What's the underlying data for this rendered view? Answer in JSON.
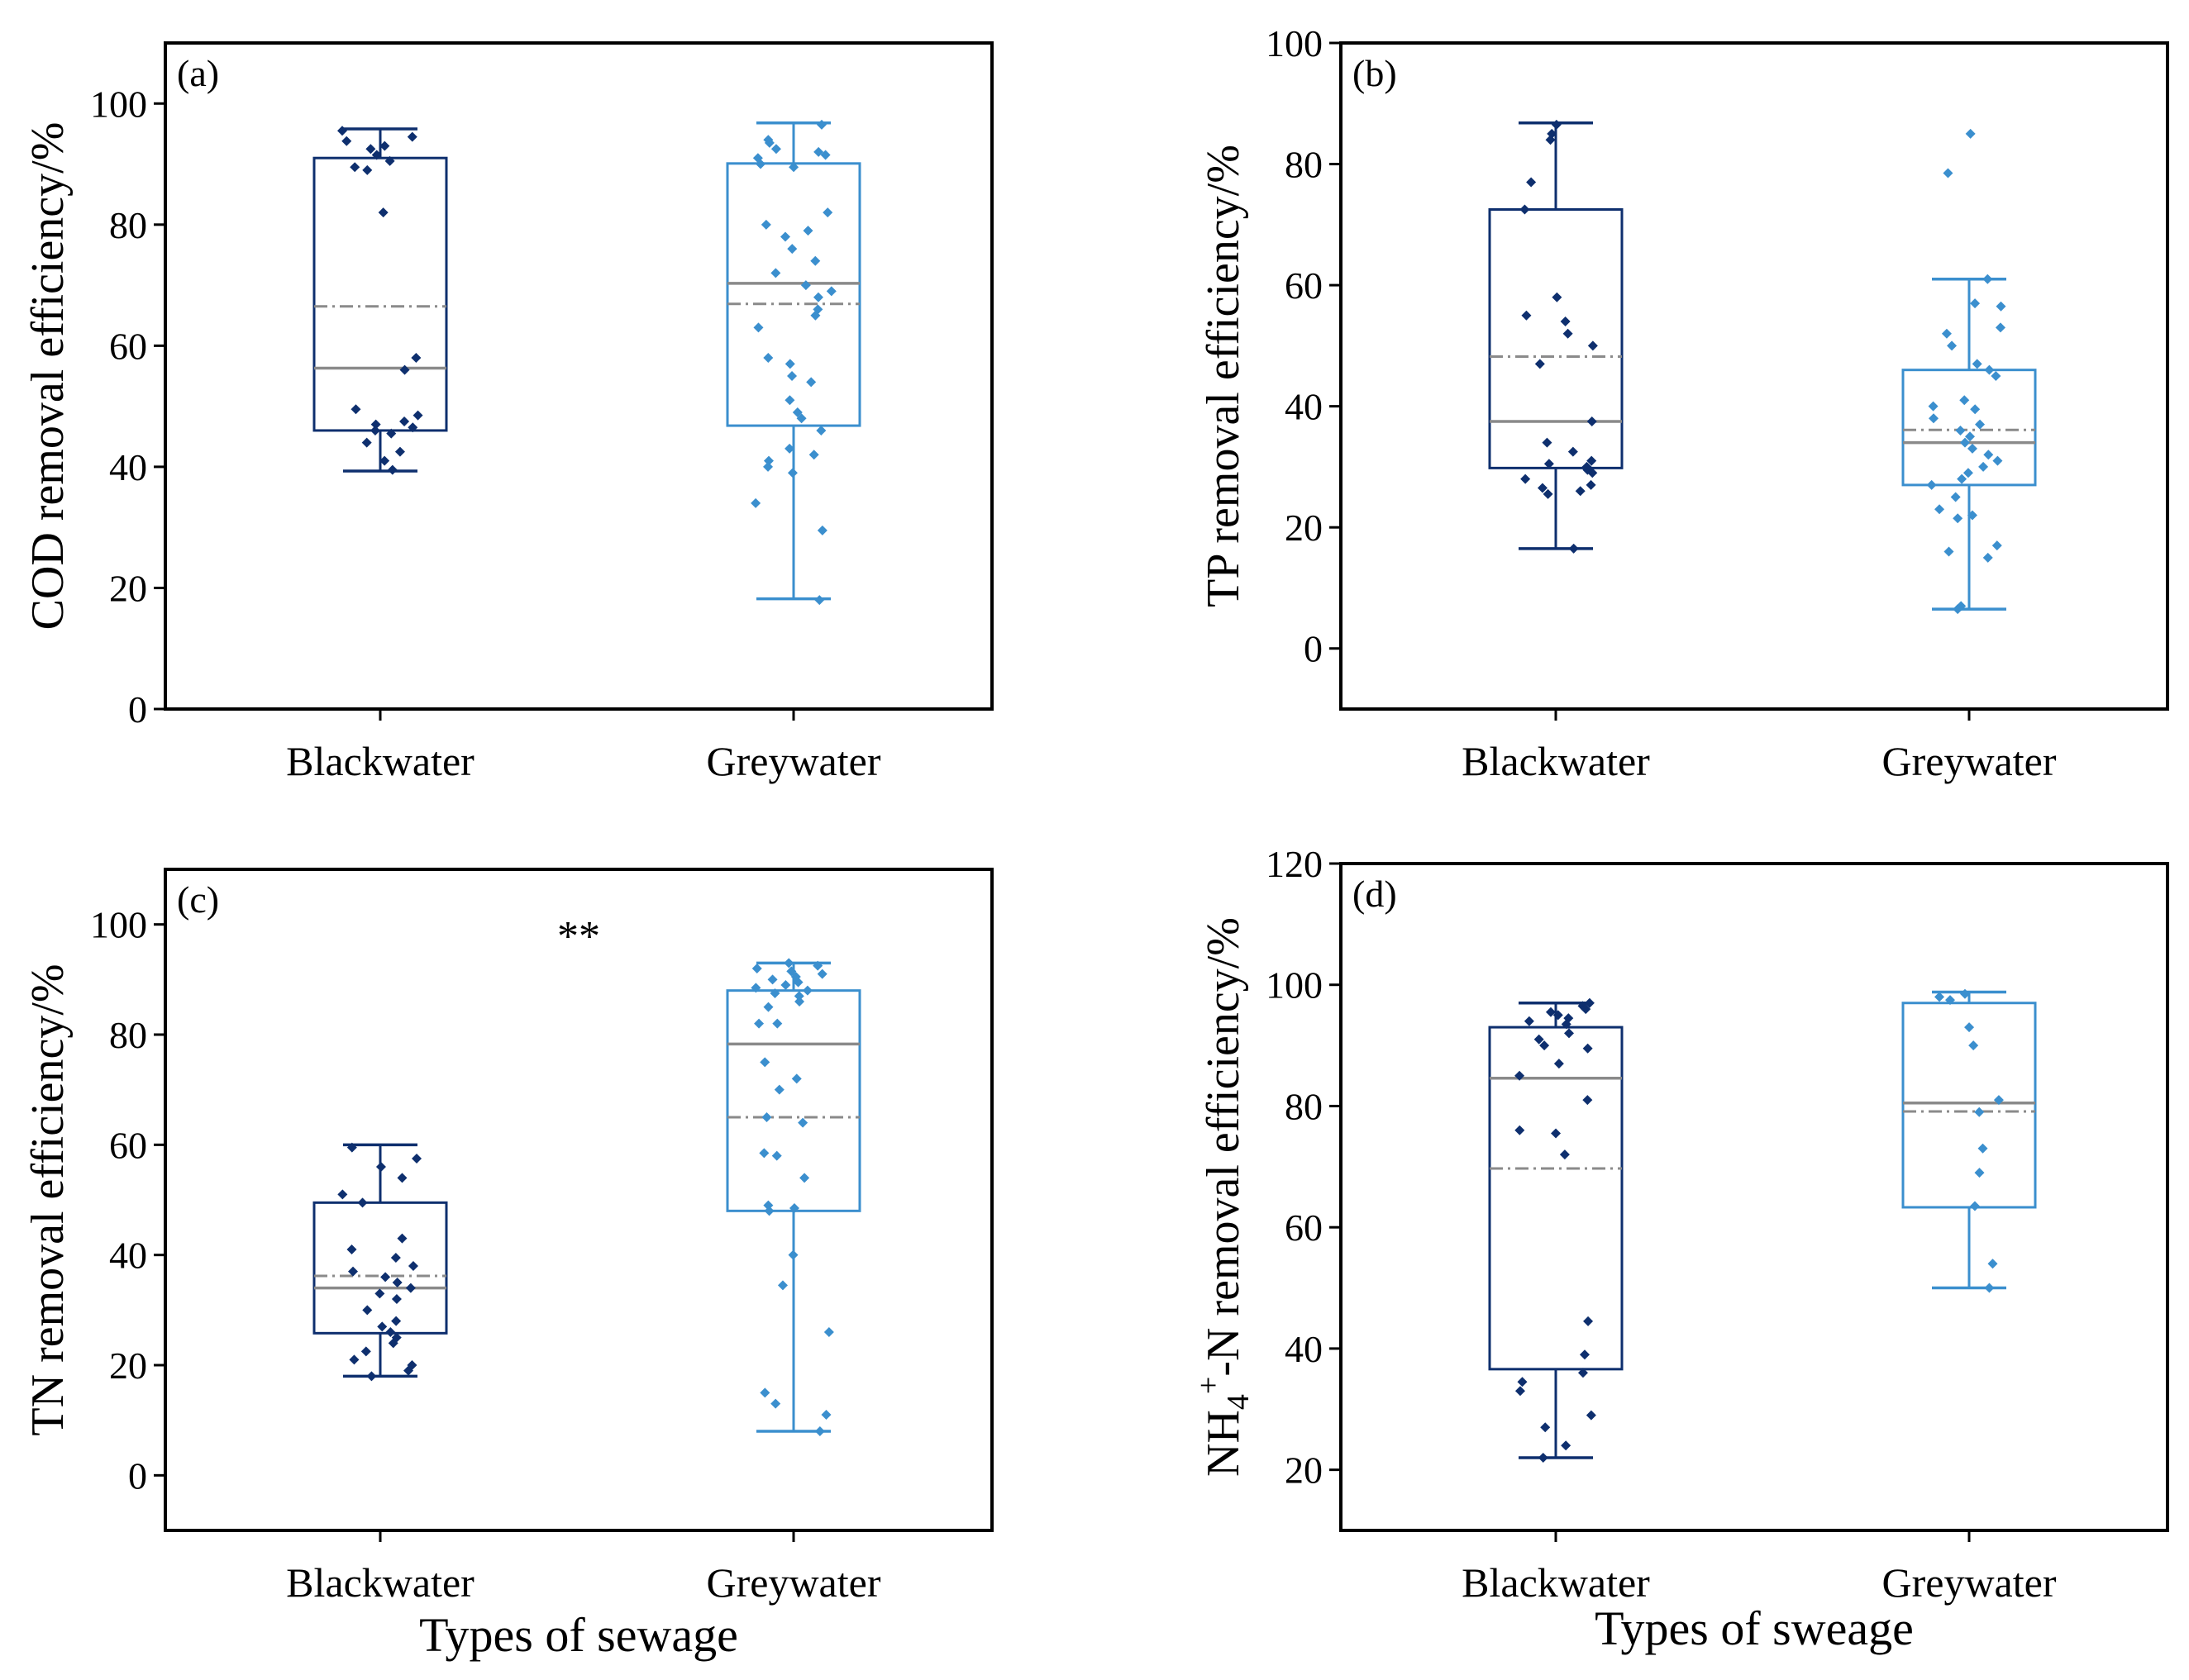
{
  "colors": {
    "blackwater": "#0e2f6e",
    "greywater": "#3b8fce",
    "median": "#8a8a8a",
    "mean": "#8a8a8a",
    "axis": "#000000"
  },
  "chart_data": [
    {
      "type": "box",
      "panel_label": "(a)",
      "ylabel": "COD removal efficiency/%",
      "xlabel": "",
      "ylim": [
        0,
        110
      ],
      "yticks": [
        0,
        20,
        40,
        60,
        80,
        100
      ],
      "ytick_labels": [
        "0",
        "20",
        "40",
        "60",
        "80",
        "100"
      ],
      "categories": [
        "Blackwater",
        "Greywater"
      ],
      "significance": "",
      "boxes": [
        {
          "name": "Blackwater",
          "color": "#0e2f6e",
          "q1": 46,
          "median": 56.3,
          "q3": 91,
          "whisker_low": 39.3,
          "whisker_high": 95.8,
          "mean": 66.5,
          "points": [
            95.5,
            94.5,
            93.8,
            93,
            92.5,
            91.5,
            90.5,
            89.5,
            89,
            82,
            58,
            56,
            49.5,
            48.5,
            47.5,
            47,
            46.5,
            46,
            45.5,
            44,
            42.5,
            41,
            39.5
          ]
        },
        {
          "name": "Greywater",
          "color": "#3b8fce",
          "q1": 46.8,
          "median": 70.3,
          "q3": 90.1,
          "whisker_low": 18.2,
          "whisker_high": 96.8,
          "mean": 66.9,
          "points": [
            96.5,
            94,
            93.5,
            92.5,
            92,
            91.5,
            91,
            90,
            89.5,
            82,
            80,
            79,
            78,
            76,
            74,
            72,
            70,
            69,
            68,
            66,
            65,
            63,
            58,
            57,
            55,
            54,
            51,
            49,
            48,
            46,
            43,
            42,
            41,
            40,
            39,
            34,
            29.5,
            18
          ]
        }
      ]
    },
    {
      "type": "box",
      "panel_label": "(b)",
      "ylabel": "TP removal efficiency/%",
      "xlabel": "",
      "ylim": [
        -10,
        100
      ],
      "yticks": [
        0,
        20,
        40,
        60,
        80,
        100
      ],
      "ytick_labels": [
        "0",
        "20",
        "40",
        "60",
        "80",
        "100"
      ],
      "categories": [
        "Blackwater",
        "Greywater"
      ],
      "significance": "",
      "boxes": [
        {
          "name": "Blackwater",
          "color": "#0e2f6e",
          "q1": 29.8,
          "median": 37.5,
          "q3": 72.5,
          "whisker_low": 16.5,
          "whisker_high": 86.8,
          "mean": 48.2,
          "points": [
            86.5,
            85,
            84,
            77,
            72.5,
            58,
            55,
            54,
            52,
            50,
            47,
            37.5,
            34,
            32.5,
            31,
            30.5,
            30,
            29.5,
            29,
            28,
            27,
            26.5,
            26,
            25.5,
            16.5
          ]
        },
        {
          "name": "Greywater",
          "color": "#3b8fce",
          "q1": 27,
          "median": 34,
          "q3": 46,
          "whisker_low": 6.5,
          "whisker_high": 61,
          "mean": 36.1,
          "points": [
            85,
            78.5,
            61,
            57,
            56.5,
            53,
            52,
            50,
            47,
            46,
            45,
            41,
            40,
            39.5,
            38,
            37,
            36,
            35,
            34,
            33,
            32,
            31,
            30,
            29,
            28,
            27,
            25,
            23,
            22,
            21.5,
            17,
            16,
            15,
            7,
            6.5
          ]
        }
      ]
    },
    {
      "type": "box",
      "panel_label": "(c)",
      "ylabel": "TN removal efficiency/%",
      "xlabel": "Types of sewage",
      "ylim": [
        -10,
        110
      ],
      "yticks": [
        0,
        20,
        40,
        60,
        80,
        100
      ],
      "ytick_labels": [
        "0",
        "20",
        "40",
        "60",
        "80",
        "100"
      ],
      "categories": [
        "Blackwater",
        "Greywater"
      ],
      "significance": "**",
      "boxes": [
        {
          "name": "Blackwater",
          "color": "#0e2f6e",
          "q1": 25.8,
          "median": 34,
          "q3": 49.5,
          "whisker_low": 18,
          "whisker_high": 60,
          "mean": 36.2,
          "points": [
            59.5,
            57.5,
            56,
            54,
            51,
            49.5,
            43,
            41,
            39.5,
            38,
            37,
            36,
            35,
            34,
            33,
            32,
            30,
            28,
            27,
            26,
            25,
            24,
            22.5,
            21,
            20,
            19,
            18
          ]
        },
        {
          "name": "Greywater",
          "color": "#3b8fce",
          "q1": 48,
          "median": 78.3,
          "q3": 88,
          "whisker_low": 8,
          "whisker_high": 93,
          "mean": 65,
          "points": [
            93,
            92.5,
            92,
            91.5,
            91,
            90.5,
            90,
            89.5,
            89,
            88.5,
            88,
            87.5,
            87,
            86,
            85,
            82,
            82,
            75,
            72,
            70,
            65,
            64,
            58.5,
            58,
            54,
            49,
            48.5,
            48,
            40,
            34.5,
            26,
            15,
            13,
            11,
            8
          ]
        }
      ]
    },
    {
      "type": "box",
      "panel_label": "(d)",
      "ylabel": "NH4+-N removal efficiency/%",
      "ylabel_parts": {
        "base": "NH",
        "sub": "4",
        "sup": "+",
        "rest": "-N removal efficiency/%"
      },
      "xlabel": "Types of sweage",
      "ylim": [
        10,
        120
      ],
      "yticks": [
        20,
        40,
        60,
        80,
        100,
        120
      ],
      "ytick_labels": [
        "20",
        "40",
        "60",
        "80",
        "100",
        "120"
      ],
      "categories": [
        "Blackwater",
        "Greywater"
      ],
      "significance": "",
      "boxes": [
        {
          "name": "Blackwater",
          "color": "#0e2f6e",
          "q1": 36.6,
          "median": 84.6,
          "q3": 93,
          "whisker_low": 22,
          "whisker_high": 97,
          "mean": 69.7,
          "points": [
            97,
            96.5,
            96,
            95.5,
            95,
            94.5,
            94,
            93.5,
            92,
            91,
            90,
            89.5,
            87,
            85,
            81,
            76,
            75.5,
            72,
            44.5,
            39,
            36,
            34.5,
            33,
            29,
            27,
            24,
            22
          ]
        },
        {
          "name": "Greywater",
          "color": "#3b8fce",
          "q1": 63.3,
          "median": 80.5,
          "q3": 97,
          "whisker_low": 50,
          "whisker_high": 98.8,
          "mean": 79.1,
          "points": [
            98.5,
            98,
            97.5,
            93,
            90,
            81,
            79,
            73,
            69,
            63.5,
            54,
            50
          ]
        }
      ]
    }
  ]
}
